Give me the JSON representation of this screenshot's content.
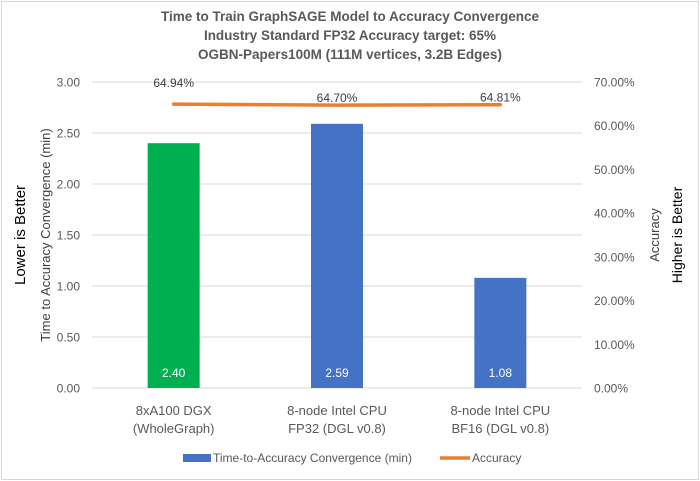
{
  "chart_data": {
    "type": "bar+line",
    "title": [
      "Time to Train GraphSAGE Model to Accuracy Convergence",
      "Industry Standard FP32 Accuracy target: 65%",
      "OGBN-Papers100M (111M vertices, 3.2B Edges)"
    ],
    "categories": [
      [
        "8xA100 DGX",
        "(WholeGraph)"
      ],
      [
        "8-node Intel CPU",
        "FP32 (DGL v0.8)"
      ],
      [
        "8-node Intel CPU",
        "BF16 (DGL v0.8)"
      ]
    ],
    "series": [
      {
        "name": "Time-to-Accuracy Convergence (min)",
        "type": "bar",
        "axis": "left",
        "values": [
          2.4,
          2.59,
          1.08
        ],
        "labels": [
          "2.40",
          "2.59",
          "1.08"
        ],
        "colors": [
          "#00b050",
          "#4472c4",
          "#4472c4"
        ],
        "legend_color": "#4472c4"
      },
      {
        "name": "Accuracy",
        "type": "line",
        "axis": "right",
        "values": [
          64.94,
          64.7,
          64.81
        ],
        "labels": [
          "64.94%",
          "64.70%",
          "64.81%"
        ],
        "color": "#ed7d31"
      }
    ],
    "ylabel": "Time to Accuracy Convergence (min)",
    "ylabel_note": "Lower is Better",
    "y2label": "Accuracy",
    "y2label_note": "Higher is Better",
    "ylim": [
      0,
      3
    ],
    "yticks": [
      "0.00",
      "0.50",
      "1.00",
      "1.50",
      "2.00",
      "2.50",
      "3.00"
    ],
    "y2lim": [
      0,
      70
    ],
    "y2ticks": [
      "0.00%",
      "10.00%",
      "20.00%",
      "30.00%",
      "40.00%",
      "50.00%",
      "60.00%",
      "70.00%"
    ],
    "grid": true,
    "legend_position": "bottom"
  }
}
